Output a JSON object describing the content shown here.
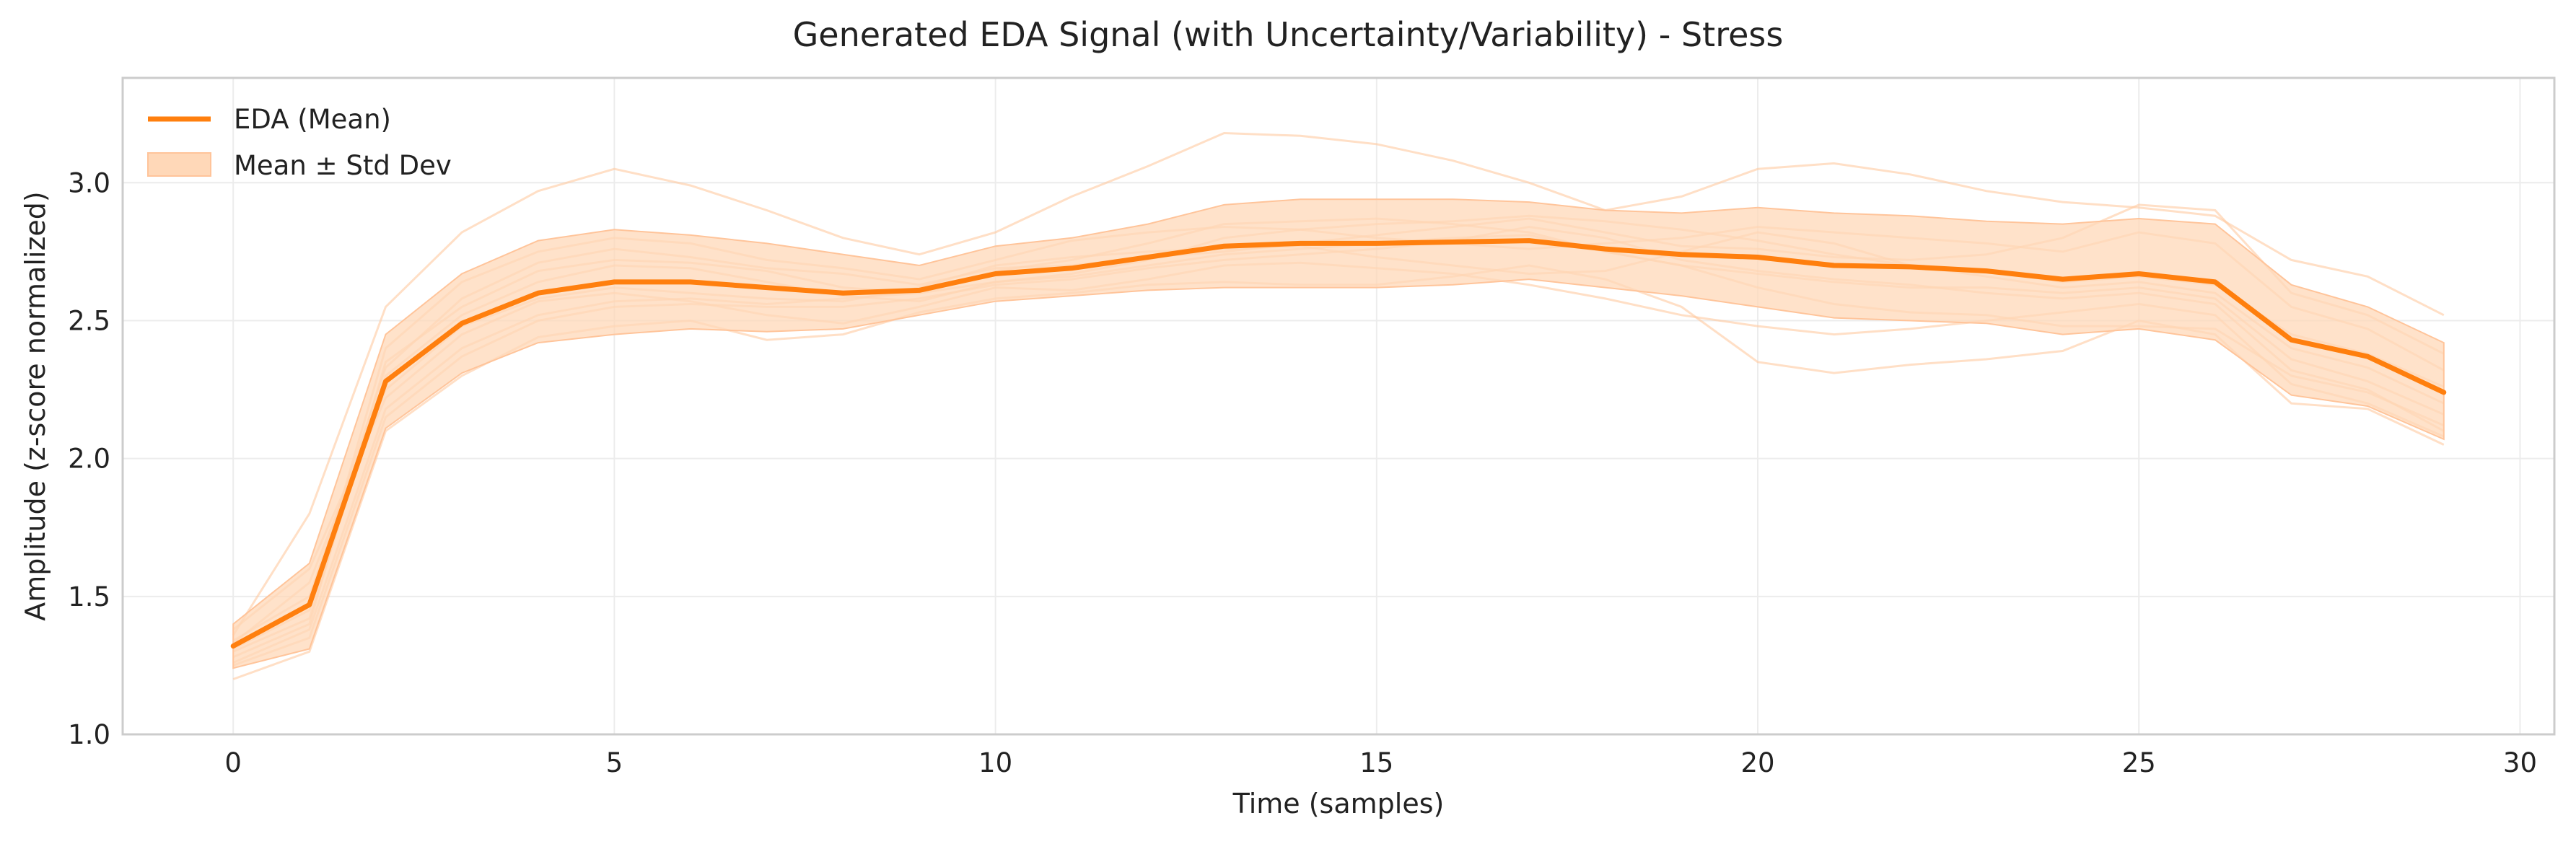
{
  "chart_data": {
    "type": "line",
    "title": "Generated EDA Signal (with Uncertainty/Variability) - Stress",
    "xlabel": "Time (samples)",
    "ylabel": "Amplitude (z-score normalized)",
    "xlim": [
      -1.45,
      30.45
    ],
    "ylim": [
      1.0,
      3.38
    ],
    "xticks": [
      0,
      5,
      10,
      15,
      20,
      25,
      30
    ],
    "yticks": [
      1.0,
      1.5,
      2.0,
      2.5,
      3.0
    ],
    "xtick_labels": [
      "0",
      "5",
      "10",
      "15",
      "20",
      "25",
      "30"
    ],
    "ytick_labels": [
      "1.0",
      "1.5",
      "2.0",
      "2.5",
      "3.0"
    ],
    "grid": true,
    "legend_position": "top-left",
    "colors": {
      "mean": "#ff7f0e",
      "band": "#ffd8b8",
      "samples": "#ffc9a0"
    },
    "x": [
      0,
      1,
      2,
      3,
      4,
      5,
      6,
      7,
      8,
      9,
      10,
      11,
      12,
      13,
      14,
      15,
      16,
      17,
      18,
      19,
      20,
      21,
      22,
      23,
      24,
      25,
      26,
      27,
      28,
      29
    ],
    "series": [
      {
        "name": "EDA (Mean)",
        "values": [
          1.32,
          1.47,
          2.28,
          2.49,
          2.6,
          2.64,
          2.64,
          2.62,
          2.6,
          2.61,
          2.67,
          2.69,
          2.73,
          2.77,
          2.78,
          2.78,
          2.785,
          2.79,
          2.76,
          2.74,
          2.73,
          2.7,
          2.695,
          2.68,
          2.65,
          2.67,
          2.64,
          2.43,
          2.37,
          2.24
        ]
      }
    ],
    "band": {
      "name": "Mean ± Std Dev",
      "upper": [
        1.4,
        1.62,
        2.45,
        2.67,
        2.79,
        2.83,
        2.81,
        2.78,
        2.74,
        2.7,
        2.77,
        2.8,
        2.85,
        2.92,
        2.94,
        2.94,
        2.94,
        2.93,
        2.9,
        2.89,
        2.91,
        2.89,
        2.88,
        2.86,
        2.85,
        2.87,
        2.85,
        2.63,
        2.55,
        2.42
      ],
      "lower": [
        1.24,
        1.31,
        2.11,
        2.31,
        2.42,
        2.45,
        2.47,
        2.46,
        2.47,
        2.52,
        2.57,
        2.59,
        2.61,
        2.62,
        2.62,
        2.62,
        2.63,
        2.65,
        2.62,
        2.59,
        2.55,
        2.51,
        2.5,
        2.49,
        2.45,
        2.47,
        2.43,
        2.23,
        2.19,
        2.07
      ]
    },
    "samples": [
      [
        1.36,
        1.8,
        2.55,
        2.82,
        2.97,
        3.05,
        2.99,
        2.9,
        2.8,
        2.74,
        2.82,
        2.95,
        3.06,
        3.18,
        3.17,
        3.14,
        3.08,
        3.0,
        2.9,
        2.95,
        3.05,
        3.07,
        3.03,
        2.97,
        2.93,
        2.91,
        2.88,
        2.72,
        2.66,
        2.52
      ],
      [
        1.2,
        1.3,
        2.1,
        2.3,
        2.44,
        2.48,
        2.5,
        2.43,
        2.45,
        2.53,
        2.58,
        2.6,
        2.63,
        2.64,
        2.63,
        2.63,
        2.66,
        2.7,
        2.65,
        2.55,
        2.35,
        2.31,
        2.34,
        2.36,
        2.39,
        2.5,
        2.45,
        2.2,
        2.18,
        2.05
      ],
      [
        1.28,
        1.4,
        2.35,
        2.55,
        2.68,
        2.72,
        2.71,
        2.68,
        2.62,
        2.6,
        2.68,
        2.72,
        2.78,
        2.85,
        2.86,
        2.87,
        2.85,
        2.82,
        2.75,
        2.7,
        2.62,
        2.56,
        2.53,
        2.52,
        2.48,
        2.48,
        2.47,
        2.3,
        2.24,
        2.12
      ],
      [
        1.33,
        1.55,
        2.25,
        2.48,
        2.58,
        2.62,
        2.6,
        2.58,
        2.57,
        2.62,
        2.7,
        2.73,
        2.75,
        2.76,
        2.77,
        2.73,
        2.7,
        2.67,
        2.68,
        2.75,
        2.82,
        2.78,
        2.7,
        2.66,
        2.62,
        2.64,
        2.6,
        2.4,
        2.33,
        2.2
      ],
      [
        1.25,
        1.35,
        2.15,
        2.37,
        2.5,
        2.55,
        2.56,
        2.55,
        2.55,
        2.58,
        2.63,
        2.65,
        2.69,
        2.72,
        2.74,
        2.76,
        2.79,
        2.84,
        2.8,
        2.72,
        2.68,
        2.65,
        2.63,
        2.6,
        2.58,
        2.6,
        2.56,
        2.32,
        2.25,
        2.1
      ],
      [
        1.31,
        1.45,
        2.4,
        2.64,
        2.75,
        2.8,
        2.78,
        2.72,
        2.69,
        2.65,
        2.72,
        2.79,
        2.82,
        2.84,
        2.83,
        2.8,
        2.78,
        2.76,
        2.78,
        2.8,
        2.84,
        2.82,
        2.8,
        2.78,
        2.75,
        2.82,
        2.78,
        2.55,
        2.47,
        2.32
      ],
      [
        1.38,
        1.6,
        2.22,
        2.45,
        2.57,
        2.6,
        2.57,
        2.52,
        2.49,
        2.55,
        2.62,
        2.61,
        2.65,
        2.7,
        2.71,
        2.69,
        2.67,
        2.63,
        2.58,
        2.52,
        2.48,
        2.45,
        2.47,
        2.5,
        2.53,
        2.56,
        2.52,
        2.27,
        2.2,
        2.08
      ],
      [
        1.3,
        1.42,
        2.3,
        2.52,
        2.64,
        2.7,
        2.69,
        2.64,
        2.59,
        2.57,
        2.64,
        2.67,
        2.72,
        2.8,
        2.83,
        2.85,
        2.86,
        2.88,
        2.86,
        2.83,
        2.79,
        2.74,
        2.7,
        2.68,
        2.64,
        2.66,
        2.63,
        2.45,
        2.38,
        2.26
      ],
      [
        1.34,
        1.5,
        2.33,
        2.58,
        2.71,
        2.76,
        2.73,
        2.69,
        2.67,
        2.63,
        2.69,
        2.7,
        2.73,
        2.75,
        2.78,
        2.81,
        2.84,
        2.87,
        2.82,
        2.77,
        2.76,
        2.73,
        2.72,
        2.74,
        2.8,
        2.92,
        2.9,
        2.6,
        2.52,
        2.38
      ],
      [
        1.26,
        1.38,
        2.18,
        2.4,
        2.52,
        2.57,
        2.58,
        2.56,
        2.58,
        2.6,
        2.64,
        2.66,
        2.7,
        2.74,
        2.76,
        2.78,
        2.8,
        2.81,
        2.75,
        2.7,
        2.67,
        2.64,
        2.62,
        2.62,
        2.6,
        2.62,
        2.58,
        2.36,
        2.28,
        2.16
      ]
    ]
  }
}
